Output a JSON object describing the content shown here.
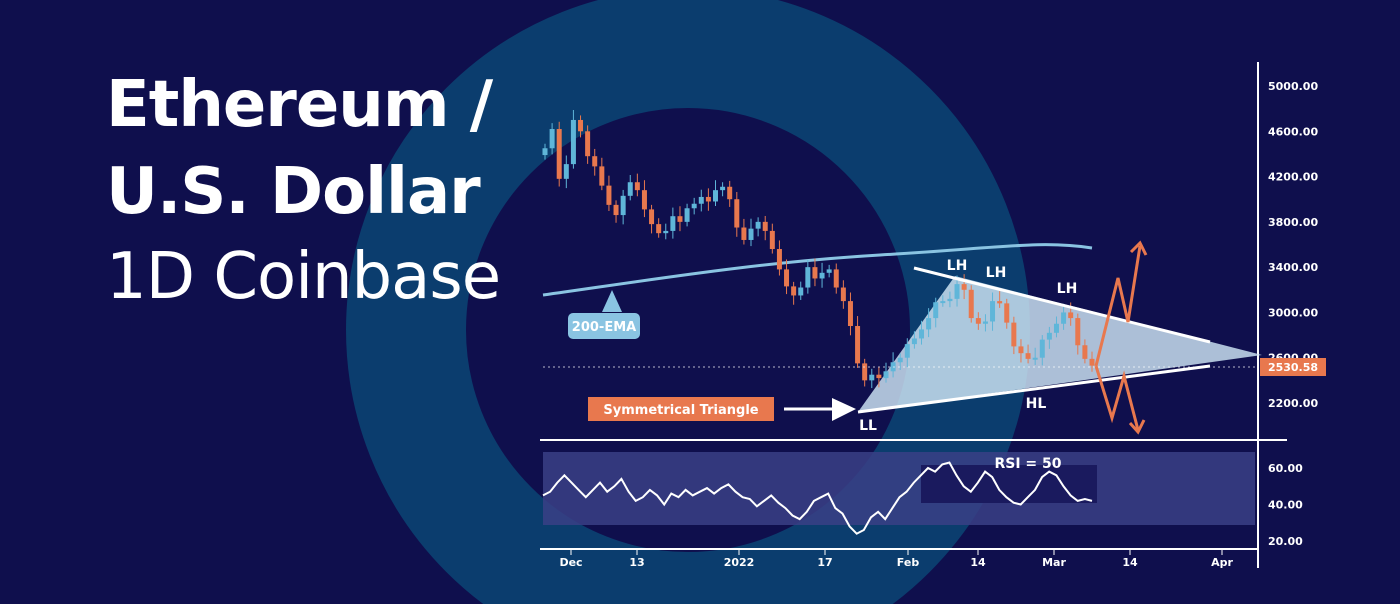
{
  "title": {
    "line1": "Ethereum /",
    "line2": "U.S. Dollar",
    "line3": "1D Coinbase"
  },
  "colors": {
    "background": "#0f0f4d",
    "ring": "#0b3d6e",
    "bull": "#5fb6d9",
    "bear": "#e8784e",
    "ema": "#8ac4e2",
    "triangle_fill": "#cfe6f5",
    "rsi_band": "#3a3f86",
    "label_bg": "#e8784e",
    "ema_label_bg": "#8ac4e2",
    "axis": "#ffffff"
  },
  "chart_data": [
    {
      "type": "candlestick",
      "title": "",
      "y_axis": {
        "ticks": [
          "5000.00",
          "4600.00",
          "4200.00",
          "3800.00",
          "3400.00",
          "3000.00",
          "2600.00",
          "2200.00"
        ],
        "range": [
          1880,
          5260
        ],
        "position": "right"
      },
      "x_axis": {
        "ticks": [
          "Dec",
          "13",
          "2022",
          "17",
          "Feb",
          "14",
          "Mar",
          "14",
          "Apr"
        ]
      },
      "last_price": "2530.58",
      "closes": [
        4450,
        4620,
        4180,
        4310,
        4700,
        4600,
        4380,
        4290,
        4120,
        3950,
        3860,
        4030,
        4150,
        4080,
        3910,
        3780,
        3700,
        3720,
        3850,
        3800,
        3920,
        3960,
        4020,
        3980,
        4080,
        4110,
        4000,
        3750,
        3640,
        3740,
        3800,
        3720,
        3560,
        3380,
        3230,
        3150,
        3220,
        3400,
        3300,
        3350,
        3380,
        3220,
        3100,
        2880,
        2550,
        2400,
        2450,
        2420,
        2480,
        2560,
        2600,
        2720,
        2770,
        2850,
        2950,
        3090,
        3100,
        3120,
        3250,
        3200,
        2950,
        2900,
        2920,
        3100,
        3080,
        2910,
        2700,
        2640,
        2590,
        2600,
        2760,
        2820,
        2900,
        3000,
        2950,
        2710,
        2590,
        2530
      ],
      "annotations": [
        "LH",
        "LH",
        "LH",
        "HL",
        "LL",
        "Symmetrical Triangle",
        "200-EMA"
      ],
      "ema_label": "200-EMA"
    },
    {
      "type": "line",
      "title": "RSI = 50",
      "y_axis": {
        "ticks": [
          "60.00",
          "40.00",
          "20.00"
        ],
        "range": [
          18,
          74
        ]
      },
      "band": [
        30,
        70
      ],
      "values": [
        45,
        47,
        52,
        56,
        52,
        48,
        44,
        48,
        52,
        47,
        50,
        54,
        47,
        42,
        44,
        48,
        45,
        40,
        46,
        44,
        48,
        45,
        47,
        49,
        46,
        49,
        51,
        47,
        44,
        43,
        39,
        42,
        45,
        41,
        38,
        34,
        32,
        36,
        42,
        44,
        46,
        38,
        35,
        28,
        24,
        26,
        33,
        36,
        32,
        38,
        44,
        47,
        52,
        56,
        60,
        58,
        62,
        63,
        56,
        50,
        47,
        52,
        58,
        55,
        48,
        44,
        41,
        40,
        44,
        48,
        55,
        58,
        56,
        50,
        45,
        42,
        43,
        42
      ]
    }
  ],
  "labels": {
    "lh1": "LH",
    "lh2": "LH",
    "lh3": "LH",
    "hl": "HL",
    "ll": "LL",
    "triangle": "Symmetrical Triangle",
    "ema": "200-EMA",
    "rsi": "RSI = 50",
    "price": "2530.58"
  }
}
